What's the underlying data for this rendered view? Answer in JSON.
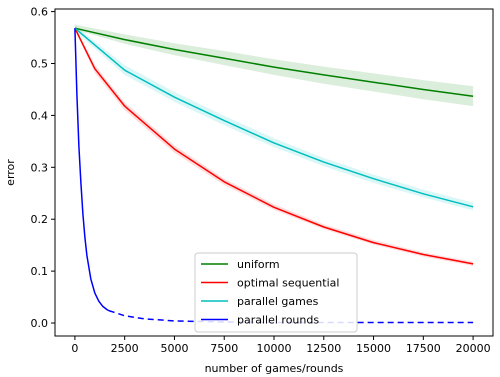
{
  "chart_data": {
    "type": "line",
    "title": "",
    "xlabel": "number of games/rounds",
    "ylabel": "error",
    "xlim": [
      -1000,
      21000
    ],
    "ylim": [
      -0.025,
      0.605
    ],
    "x_ticks": [
      0,
      2500,
      5000,
      7500,
      10000,
      12500,
      15000,
      17500,
      20000
    ],
    "y_ticks": [
      0.0,
      0.1,
      0.2,
      0.3,
      0.4,
      0.5,
      0.6
    ],
    "x_tick_labels": [
      "0",
      "2500",
      "5000",
      "7500",
      "10000",
      "12500",
      "15000",
      "17500",
      "20000"
    ],
    "y_tick_labels": [
      "0.0",
      "0.1",
      "0.2",
      "0.3",
      "0.4",
      "0.5",
      "0.6"
    ],
    "grid": false,
    "legend_position": "lower-center",
    "series": [
      {
        "name": "uniform",
        "color": "#008000",
        "style": "solid",
        "x": [
          0,
          2500,
          5000,
          7500,
          10000,
          12500,
          15000,
          17500,
          20000
        ],
        "y": [
          0.568,
          0.546,
          0.527,
          0.51,
          0.493,
          0.478,
          0.464,
          0.45,
          0.437
        ],
        "band_lower": [
          0.565,
          0.538,
          0.516,
          0.497,
          0.478,
          0.461,
          0.446,
          0.431,
          0.418
        ],
        "band_upper": [
          0.575,
          0.556,
          0.539,
          0.524,
          0.508,
          0.494,
          0.481,
          0.468,
          0.456
        ]
      },
      {
        "name": "optimal sequential",
        "color": "#ff0000",
        "style": "solid",
        "x": [
          0,
          1000,
          2500,
          5000,
          7500,
          10000,
          12500,
          15000,
          17500,
          20000
        ],
        "y": [
          0.568,
          0.49,
          0.418,
          0.335,
          0.272,
          0.223,
          0.185,
          0.155,
          0.132,
          0.114
        ],
        "band_lower": [
          0.565,
          0.482,
          0.41,
          0.328,
          0.266,
          0.218,
          0.181,
          0.151,
          0.128,
          0.11
        ],
        "band_upper": [
          0.571,
          0.497,
          0.425,
          0.342,
          0.278,
          0.229,
          0.19,
          0.16,
          0.136,
          0.118
        ]
      },
      {
        "name": "parallel games",
        "color": "#00bfbf",
        "style": "solid",
        "x": [
          0,
          2500,
          5000,
          7500,
          10000,
          12500,
          15000,
          17500,
          20000
        ],
        "y": [
          0.568,
          0.487,
          0.435,
          0.39,
          0.347,
          0.31,
          0.278,
          0.249,
          0.224
        ],
        "band_lower": [
          0.563,
          0.478,
          0.426,
          0.381,
          0.339,
          0.302,
          0.27,
          0.242,
          0.217
        ],
        "band_upper": [
          0.573,
          0.497,
          0.445,
          0.399,
          0.356,
          0.318,
          0.286,
          0.257,
          0.232
        ]
      },
      {
        "name": "parallel rounds",
        "color": "#0000ff",
        "style": "solid",
        "x": [
          0,
          100,
          200,
          300,
          400,
          500,
          600,
          800,
          1000,
          1200,
          1400,
          1600,
          1700
        ],
        "y": [
          0.568,
          0.44,
          0.34,
          0.27,
          0.21,
          0.165,
          0.13,
          0.085,
          0.058,
          0.042,
          0.032,
          0.026,
          0.024
        ]
      },
      {
        "name": "",
        "color": "#0000ff",
        "style": "dashed",
        "x": [
          1700,
          2500,
          3500,
          5000,
          7500,
          10000,
          12500,
          15000,
          17500,
          20000
        ],
        "y": [
          0.024,
          0.014,
          0.008,
          0.004,
          0.002,
          0.001,
          0.001,
          0.001,
          0.001,
          0.001
        ]
      }
    ]
  }
}
